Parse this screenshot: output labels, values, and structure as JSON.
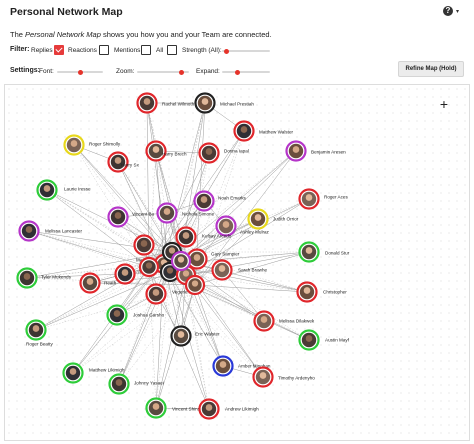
{
  "header": {
    "title": "Personal Network Map",
    "help_icon": "?",
    "dropdown_icon": "▾"
  },
  "description": {
    "before": "The ",
    "italic": "Personal Network Map",
    "after": " shows you how you and your Team are connected."
  },
  "filter": {
    "label": "Filter:",
    "options": [
      {
        "label": "Replies",
        "checked": true
      },
      {
        "label": "Reactions",
        "checked": false
      },
      {
        "label": "Mentions",
        "checked": false
      },
      {
        "label": "All",
        "checked": false
      },
      {
        "label": "Strength (All):",
        "checked": false
      }
    ],
    "strength_level": 0.05
  },
  "settings": {
    "label": "Settings:",
    "font_label": "Font:",
    "font_level": 0.5,
    "zoom_label": "Zoom:",
    "zoom_level": 0.9,
    "expand_label": "Expand:",
    "expand_level": 0.3
  },
  "refine_button": "Refine Map (Hold)",
  "zoom_in": "+",
  "accent_color": "#e5332a",
  "ring_colors": {
    "red": "#e0262b",
    "green": "#2ecc3a",
    "purple": "#b535c9",
    "yellow": "#e8d81c",
    "blue": "#2a39d8",
    "dark": "#222222"
  },
  "nodes": [
    {
      "name": "Rachel Wilmoth",
      "ring": "red"
    },
    {
      "name": "Michael Prestiah",
      "ring": "dark"
    },
    {
      "name": "Matthew Walster",
      "ring": "red"
    },
    {
      "name": "Roger Shimolly",
      "ring": "yellow"
    },
    {
      "name": "Harry Sx",
      "ring": "red"
    },
    {
      "name": "Harry Brech",
      "ring": "red"
    },
    {
      "name": "Donna Iapal",
      "ring": "red"
    },
    {
      "name": "Benjamin Aresen",
      "ring": "purple"
    },
    {
      "name": "Laurie Iresse",
      "ring": "green"
    },
    {
      "name": "Roger Aces",
      "ring": "red"
    },
    {
      "name": "Vincent Bu",
      "ring": "purple"
    },
    {
      "name": "Nichola Simone",
      "ring": "purple"
    },
    {
      "name": "Noah Emarks",
      "ring": "purple"
    },
    {
      "name": "Judith Orrior",
      "ring": "yellow"
    },
    {
      "name": "Melissa Lancaster",
      "ring": "purple"
    },
    {
      "name": "Ashley Mulraz",
      "ring": "purple"
    },
    {
      "name": "Kelsay Arcedo",
      "ring": "red"
    },
    {
      "name": "Donald Stur",
      "ring": "green"
    },
    {
      "name": "Martin",
      "ring": "red"
    },
    {
      "name": "Gary Sampier",
      "ring": "red"
    },
    {
      "name": "Anthony",
      "ring": "red"
    },
    {
      "name": "Sarah Brawhe",
      "ring": "red"
    },
    {
      "name": "Tyler Mukends",
      "ring": "green"
    },
    {
      "name": "Heath",
      "ring": "red"
    },
    {
      "name": "Vegerle Nusar",
      "ring": "red"
    },
    {
      "name": "Christopher",
      "ring": "red"
    },
    {
      "name": "Joshua Garsho",
      "ring": "green"
    },
    {
      "name": "Melissa Dilakwek",
      "ring": "red"
    },
    {
      "name": "Roger Beatty",
      "ring": "green"
    },
    {
      "name": "Eric Walster",
      "ring": "dark"
    },
    {
      "name": "Austin Mayf",
      "ring": "green"
    },
    {
      "name": "Amber Minohan",
      "ring": "blue"
    },
    {
      "name": "Matthew Likimigh",
      "ring": "green"
    },
    {
      "name": "Timothy Ardenyho",
      "ring": "red"
    },
    {
      "name": "Johnny Yasaei",
      "ring": "green"
    },
    {
      "name": "Vincent Shinson",
      "ring": "green"
    },
    {
      "name": "Andrew Likimigh",
      "ring": "red"
    },
    {
      "name": "",
      "ring": "red"
    },
    {
      "name": "",
      "ring": "dark"
    },
    {
      "name": "",
      "ring": "red"
    },
    {
      "name": "",
      "ring": "dark"
    },
    {
      "name": "",
      "ring": "purple"
    },
    {
      "name": "",
      "ring": "red"
    },
    {
      "name": "",
      "ring": "red"
    }
  ]
}
